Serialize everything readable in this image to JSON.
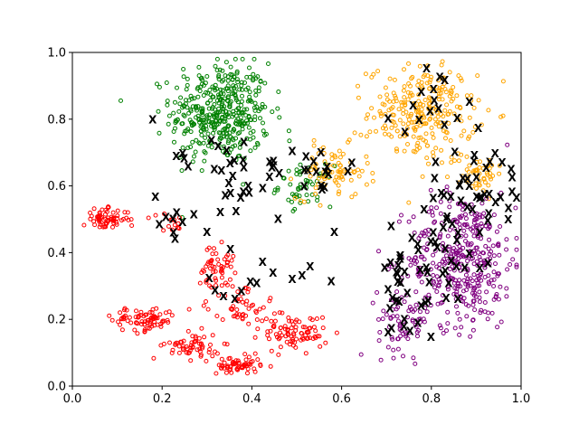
{
  "chart_data": {
    "type": "scatter",
    "title": "",
    "xlabel": "",
    "ylabel": "",
    "xlim": [
      0.0,
      1.0
    ],
    "ylim": [
      0.0,
      1.0
    ],
    "x_ticks": [
      "0.0",
      "0.2",
      "0.4",
      "0.6",
      "0.8",
      "1.0"
    ],
    "y_ticks": [
      "0.0",
      "0.2",
      "0.4",
      "0.6",
      "0.8",
      "1.0"
    ],
    "grid": false,
    "legend": "none",
    "marker_style": "hollow circles for clusters, black x for highlighted points",
    "series": [
      {
        "color": "#008000",
        "marker": "circle",
        "clusters": [
          {
            "cx": 0.33,
            "cy": 0.82,
            "sx": 0.055,
            "sy": 0.075,
            "n": 420
          },
          {
            "cx": 0.52,
            "cy": 0.6,
            "sx": 0.03,
            "sy": 0.03,
            "n": 50
          }
        ]
      },
      {
        "color": "#ffa500",
        "marker": "circle",
        "clusters": [
          {
            "cx": 0.78,
            "cy": 0.82,
            "sx": 0.06,
            "sy": 0.07,
            "n": 260
          },
          {
            "cx": 0.58,
            "cy": 0.64,
            "sx": 0.04,
            "sy": 0.04,
            "n": 80
          },
          {
            "cx": 0.9,
            "cy": 0.64,
            "sx": 0.03,
            "sy": 0.03,
            "n": 50
          }
        ]
      },
      {
        "color": "#800080",
        "marker": "circle",
        "clusters": [
          {
            "cx": 0.87,
            "cy": 0.38,
            "sx": 0.06,
            "sy": 0.1,
            "n": 380
          },
          {
            "cx": 0.74,
            "cy": 0.2,
            "sx": 0.03,
            "sy": 0.05,
            "n": 70
          }
        ]
      },
      {
        "color": "#ff0000",
        "marker": "circle",
        "clusters": [
          {
            "cx": 0.075,
            "cy": 0.5,
            "sx": 0.025,
            "sy": 0.015,
            "n": 70
          },
          {
            "cx": 0.16,
            "cy": 0.2,
            "sx": 0.035,
            "sy": 0.018,
            "n": 80
          },
          {
            "cx": 0.27,
            "cy": 0.12,
            "sx": 0.03,
            "sy": 0.02,
            "n": 60
          },
          {
            "cx": 0.37,
            "cy": 0.06,
            "sx": 0.025,
            "sy": 0.015,
            "n": 60
          },
          {
            "cx": 0.5,
            "cy": 0.16,
            "sx": 0.035,
            "sy": 0.025,
            "n": 80
          },
          {
            "cx": 0.32,
            "cy": 0.36,
            "sx": 0.02,
            "sy": 0.03,
            "n": 50
          },
          {
            "cx": 0.38,
            "cy": 0.24,
            "sx": 0.04,
            "sy": 0.04,
            "n": 60
          },
          {
            "cx": 0.21,
            "cy": 0.49,
            "sx": 0.02,
            "sy": 0.015,
            "n": 15
          }
        ]
      },
      {
        "color": "#000000",
        "marker": "x",
        "clusters": [
          {
            "cx": 0.9,
            "cy": 0.6,
            "sx": 0.05,
            "sy": 0.06,
            "n": 40
          },
          {
            "cx": 0.83,
            "cy": 0.4,
            "sx": 0.06,
            "sy": 0.12,
            "n": 30
          },
          {
            "cx": 0.48,
            "cy": 0.62,
            "sx": 0.08,
            "sy": 0.06,
            "n": 35
          },
          {
            "cx": 0.3,
            "cy": 0.65,
            "sx": 0.06,
            "sy": 0.08,
            "n": 15
          },
          {
            "cx": 0.72,
            "cy": 0.36,
            "sx": 0.02,
            "sy": 0.04,
            "n": 12
          },
          {
            "cx": 0.42,
            "cy": 0.3,
            "sx": 0.06,
            "sy": 0.04,
            "n": 14
          },
          {
            "cx": 0.25,
            "cy": 0.5,
            "sx": 0.04,
            "sy": 0.02,
            "n": 10
          },
          {
            "cx": 0.75,
            "cy": 0.22,
            "sx": 0.03,
            "sy": 0.06,
            "n": 15
          },
          {
            "cx": 0.82,
            "cy": 0.85,
            "sx": 0.05,
            "sy": 0.06,
            "n": 15
          }
        ]
      }
    ]
  }
}
